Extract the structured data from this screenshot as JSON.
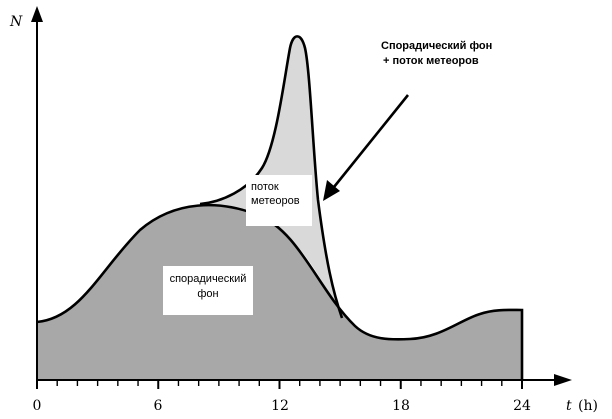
{
  "chart_data": {
    "type": "area",
    "x_label": "t",
    "x_unit": "(h)",
    "y_label": "N",
    "x_ticks": [
      "0",
      "6",
      "12",
      "18",
      "24"
    ],
    "xlim": [
      0,
      24
    ],
    "series": [
      {
        "name": "Спорадический фон",
        "x": [
          0,
          2,
          4,
          6,
          8,
          10,
          12,
          14,
          16,
          18,
          20,
          22,
          24
        ],
        "y": [
          0.17,
          0.22,
          0.32,
          0.43,
          0.48,
          0.45,
          0.33,
          0.15,
          0.05,
          0.05,
          0.07,
          0.17,
          0.19
        ]
      },
      {
        "name": "Спорадический фон + поток метеоров",
        "x": [
          0,
          8,
          10,
          11.5,
          12.5,
          13,
          13.5,
          14,
          15
        ],
        "y": [
          0.17,
          0.49,
          0.57,
          0.78,
          1.0,
          0.92,
          0.58,
          0.36,
          0.13
        ]
      }
    ],
    "annotations": {
      "sporadic": [
        "спорадический",
        "фон"
      ],
      "shower": [
        "поток",
        "метеоров"
      ],
      "total": [
        "Спорадический фон",
        "+ поток метеоров"
      ]
    },
    "colors": {
      "background_fill": "#a8a8a8",
      "shower_fill": "#d9d9d9",
      "axis": "#000000"
    }
  }
}
